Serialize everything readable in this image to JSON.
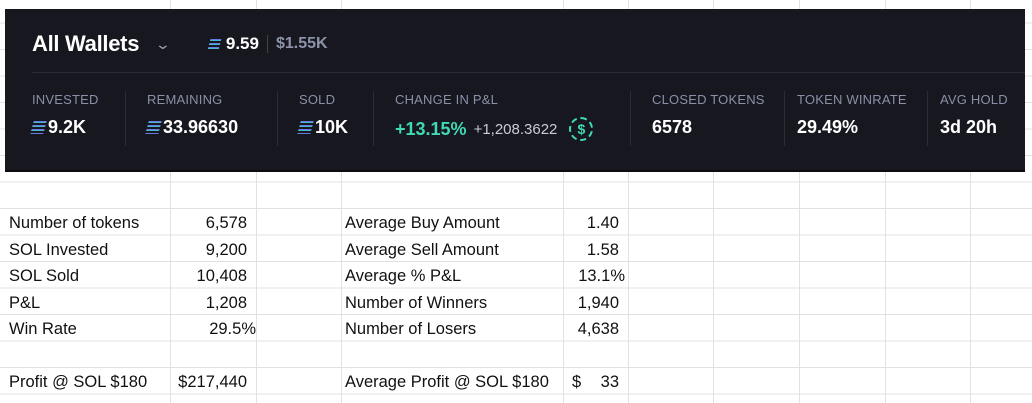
{
  "header": {
    "title": "All Wallets",
    "sol_balance": "9.59",
    "usd_balance": "$1.55K"
  },
  "stats": [
    {
      "label": "INVESTED",
      "value": "9.2K",
      "sol": true
    },
    {
      "label": "REMAINING",
      "value": "33.96630",
      "sol": true
    },
    {
      "label": "SOLD",
      "value": "10K",
      "sol": true
    },
    {
      "label": "CHANGE IN P&L",
      "percent": "+13.15%",
      "amount": "+1,208.3622"
    },
    {
      "label": "CLOSED TOKENS",
      "value": "6578"
    },
    {
      "label": "TOKEN WINRATE",
      "value": "29.49%"
    },
    {
      "label": "AVG HOLD",
      "value": "3d 20h"
    }
  ],
  "sheet": {
    "left": [
      {
        "label": "Number of tokens",
        "value": "6,578"
      },
      {
        "label": "SOL Invested",
        "value": "9,200"
      },
      {
        "label": "SOL Sold",
        "value": "10,408"
      },
      {
        "label": "P&L",
        "value": "1,208"
      },
      {
        "label": "Win Rate",
        "value": "29.5%"
      }
    ],
    "right": [
      {
        "label": "Average Buy Amount",
        "value": "1.40"
      },
      {
        "label": "Average Sell Amount",
        "value": "1.58"
      },
      {
        "label": "Average % P&L",
        "value": "13.1%"
      },
      {
        "label": "Number of Winners",
        "value": "1,940"
      },
      {
        "label": "Number of Losers",
        "value": "4,638"
      }
    ],
    "profit_left": {
      "label": "Profit @ SOL $180",
      "value": "$217,440"
    },
    "profit_right": {
      "label": "Average Profit @ SOL $180",
      "currency": "$",
      "value": "33"
    }
  },
  "colors": {
    "panel": "#17171f",
    "accent_green": "#3fd9b4"
  }
}
